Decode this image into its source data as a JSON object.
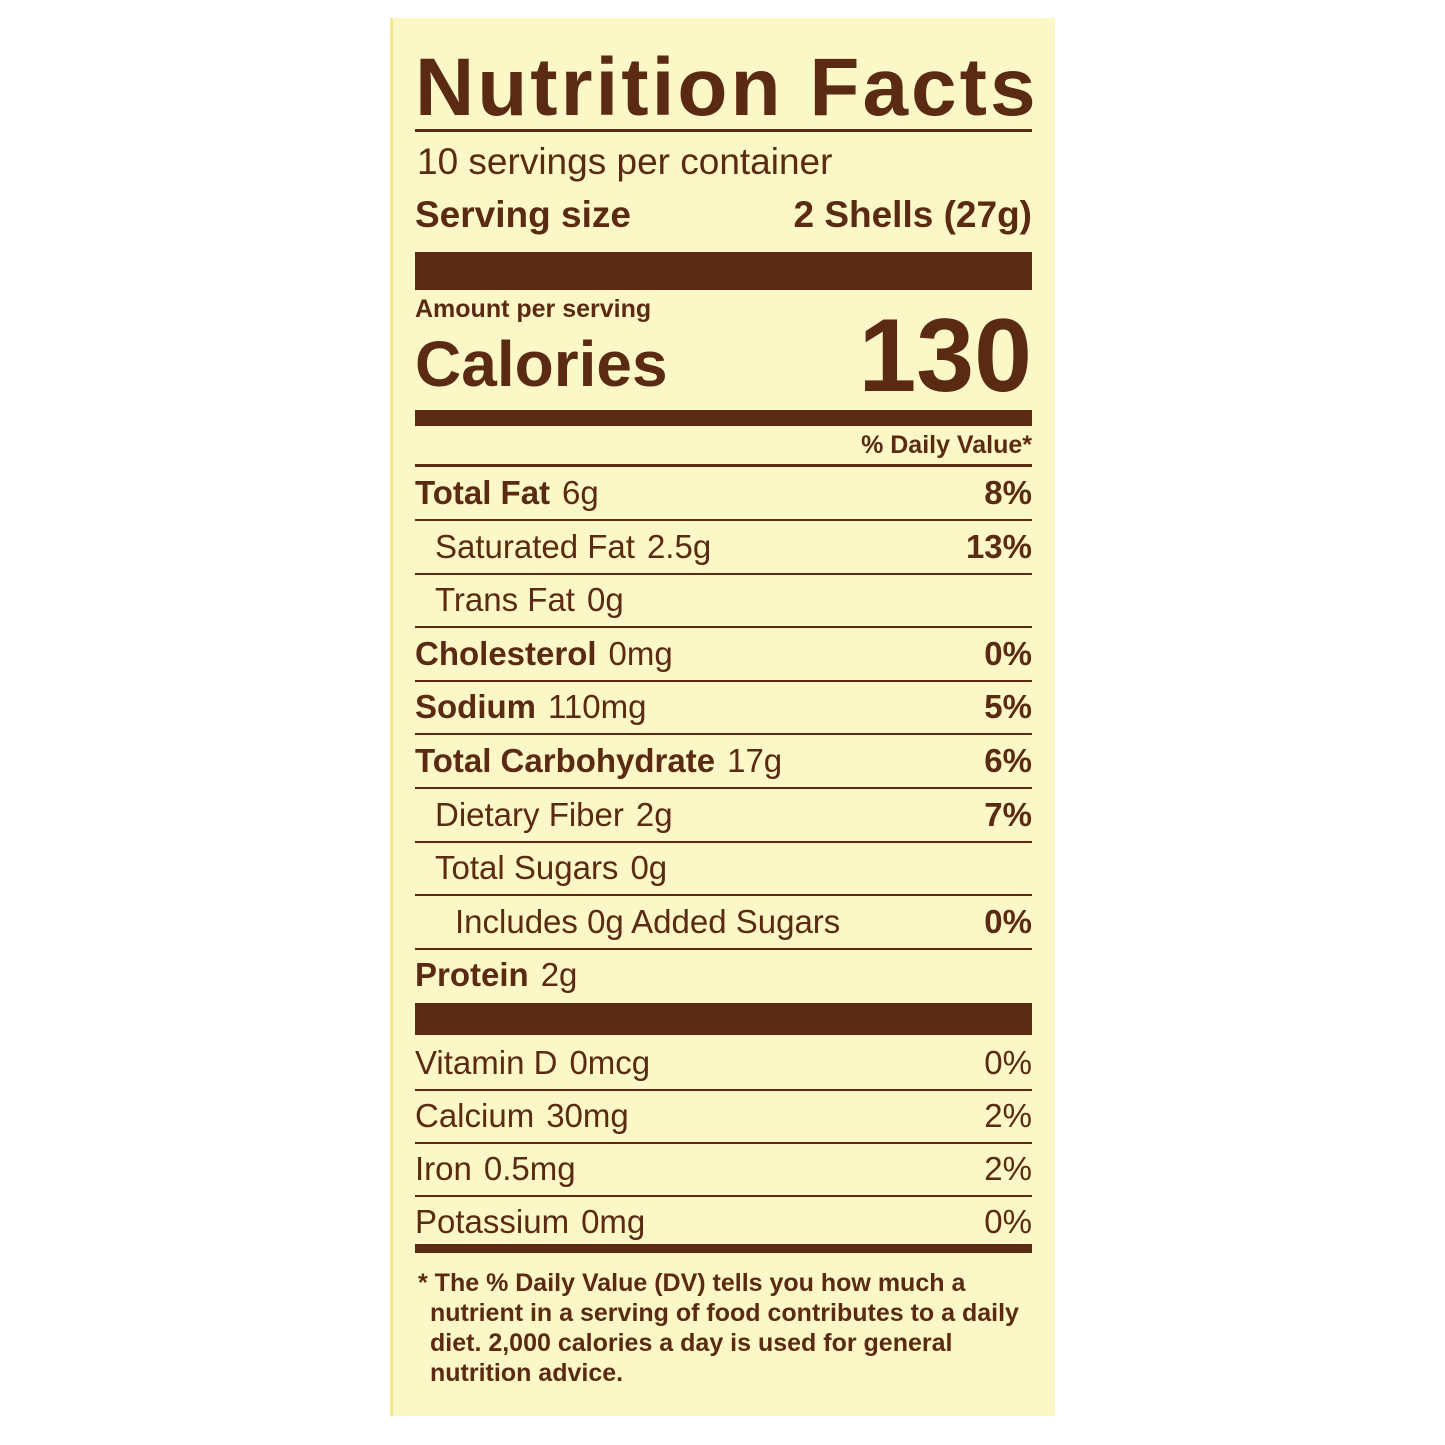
{
  "title": "Nutrition Facts",
  "servings": "10 servings per container",
  "serving_size": {
    "label": "Serving size",
    "value": "2 Shells (27g)"
  },
  "amount_per_serving": "Amount per serving",
  "calories": {
    "label": "Calories",
    "value": 130
  },
  "daily_value_header": "% Daily Value*",
  "nutrients": [
    {
      "name": "Total Fat",
      "amount": "6g",
      "dv": "8%",
      "bold": true,
      "level": 0
    },
    {
      "name": "Saturated Fat",
      "amount": "2.5g",
      "dv": "13%",
      "bold": false,
      "level": 1
    },
    {
      "name": "Trans Fat",
      "amount": "0g",
      "bold": false,
      "level": 1
    },
    {
      "name": "Cholesterol",
      "amount": "0mg",
      "dv": "0%",
      "bold": true,
      "level": 0
    },
    {
      "name": "Sodium",
      "amount": "110mg",
      "dv": "5%",
      "bold": true,
      "level": 0
    },
    {
      "name": "Total Carbohydrate",
      "amount": "17g",
      "dv": "6%",
      "bold": true,
      "level": 0
    },
    {
      "name": "Dietary Fiber",
      "amount": "2g",
      "dv": "7%",
      "bold": false,
      "level": 1
    },
    {
      "name": "Total Sugars",
      "amount": "0g",
      "bold": false,
      "level": 1
    },
    {
      "name": "Includes 0g Added Sugars",
      "dv": "0%",
      "bold": false,
      "level": 2
    },
    {
      "name": "Protein",
      "amount": "2g",
      "bold": true,
      "level": 0
    }
  ],
  "vitamins": [
    {
      "name": "Vitamin D",
      "amount": "0mcg",
      "dv": "0%"
    },
    {
      "name": "Calcium",
      "amount": "30mg",
      "dv": "2%"
    },
    {
      "name": "Iron",
      "amount": "0.5mg",
      "dv": "2%"
    },
    {
      "name": "Potassium",
      "amount": "0mg",
      "dv": "0%"
    }
  ],
  "footnote": [
    "* The % Daily Value (DV) tells you how much a",
    "nutrient in a serving of food contributes to a daily",
    "diet. 2,000 calories a day is used for general",
    "nutrition advice."
  ]
}
